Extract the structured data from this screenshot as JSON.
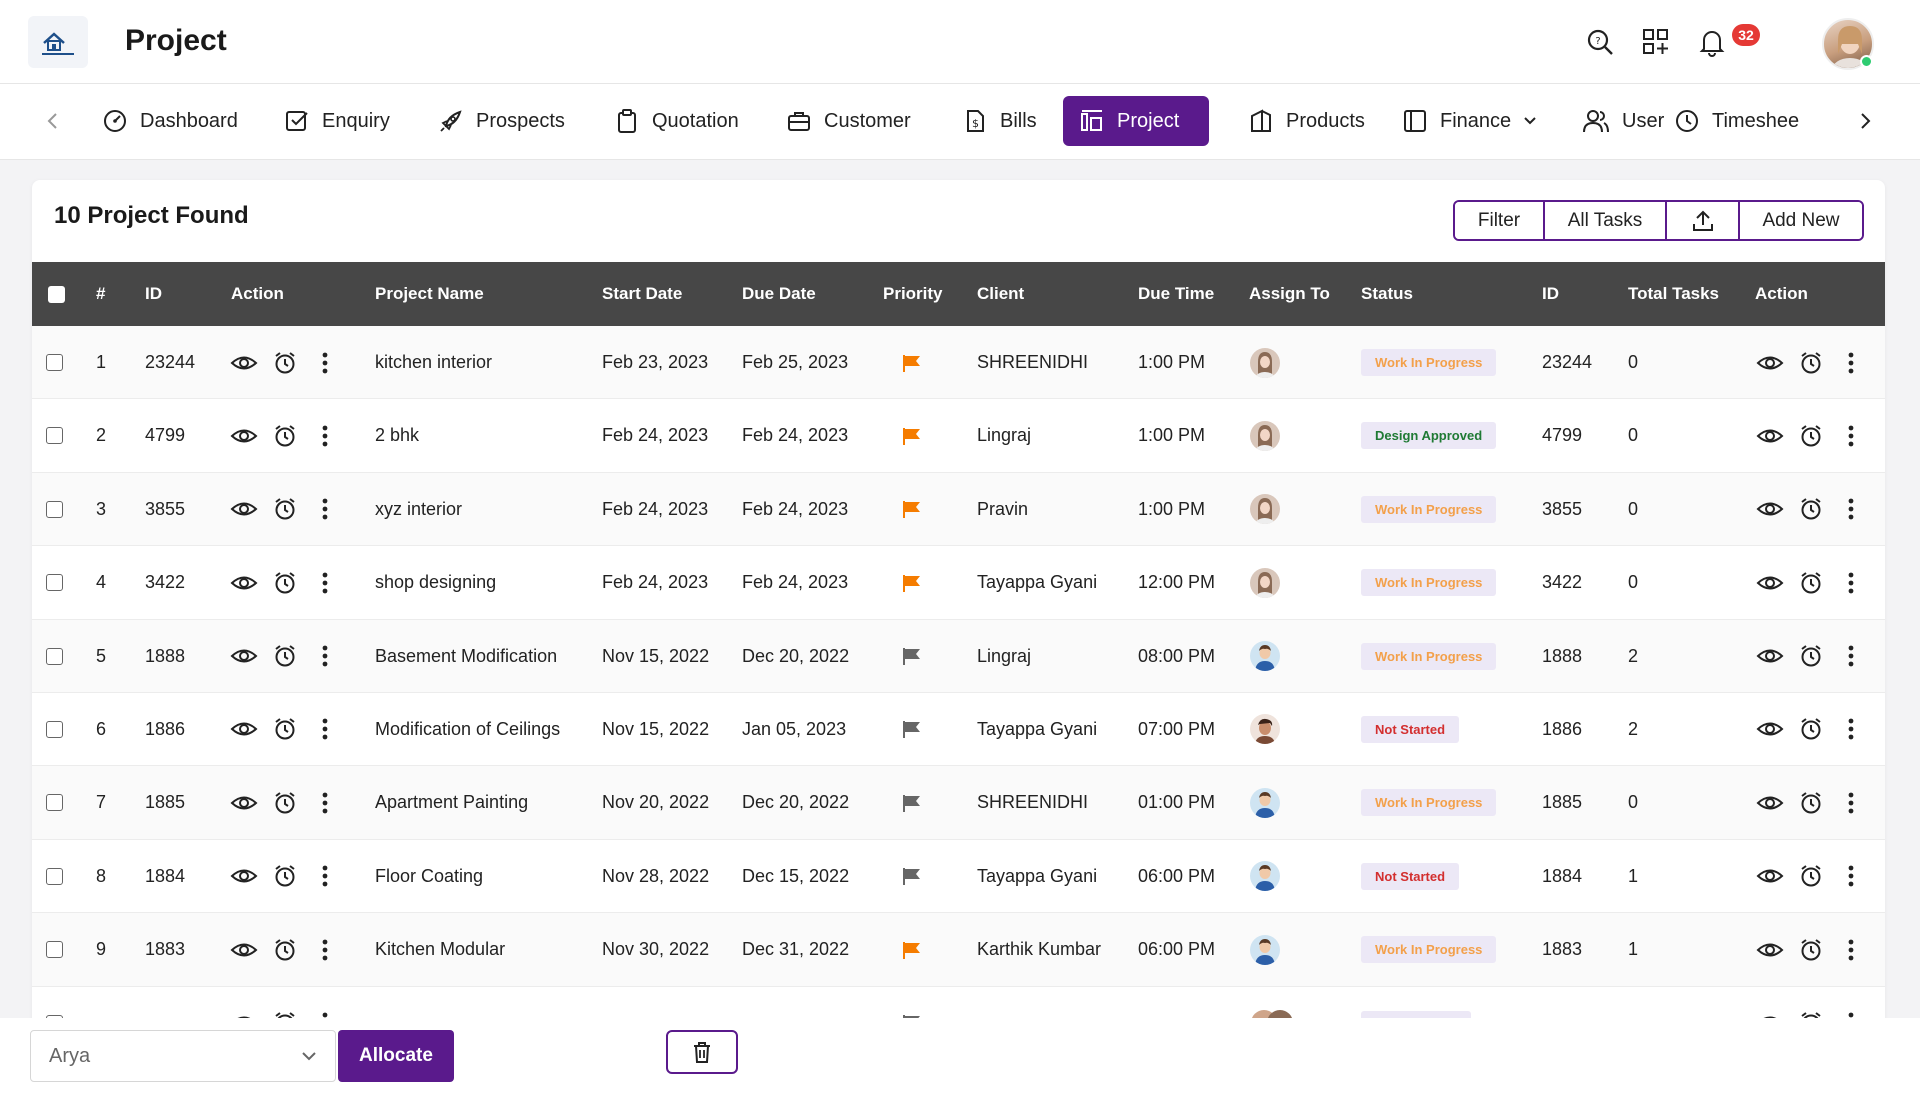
{
  "header": {
    "title": "Project",
    "notification_count": "32",
    "icons": [
      "search-icon",
      "apps-icon",
      "bell-icon"
    ]
  },
  "nav": {
    "items": [
      {
        "label": "Dashboard",
        "icon": "dashboard-icon"
      },
      {
        "label": "Enquiry",
        "icon": "checkbox-icon"
      },
      {
        "label": "Prospects",
        "icon": "rocket-icon"
      },
      {
        "label": "Quotation",
        "icon": "clipboard-icon"
      },
      {
        "label": "Customer",
        "icon": "briefcase-icon"
      },
      {
        "label": "Bills",
        "icon": "bill-icon"
      },
      {
        "label": "Project",
        "icon": "project-icon",
        "active": true
      },
      {
        "label": "Products",
        "icon": "products-icon"
      },
      {
        "label": "Finance",
        "icon": "finance-icon"
      },
      {
        "label": "User",
        "icon": "users-icon"
      },
      {
        "label": "Timeshee",
        "icon": "clock-icon"
      }
    ]
  },
  "main": {
    "found_text": "10 Project Found",
    "buttons": {
      "filter": "Filter",
      "all_tasks": "All Tasks",
      "add_new": "Add New"
    },
    "columns": [
      "#",
      "ID",
      "Action",
      "Project Name",
      "Start Date",
      "Due Date",
      "Priority",
      "Client",
      "Due Time",
      "Assign To",
      "Status",
      "ID",
      "Total Tasks",
      "Action"
    ],
    "rows": [
      {
        "num": "1",
        "id": "23244",
        "name": "kitchen interior",
        "start": "Feb 23, 2023",
        "due": "Feb 25, 2023",
        "priority": "high",
        "client": "SHREENIDHI",
        "time": "1:00 PM",
        "avatar": "female",
        "status": "Work In Progress",
        "status_type": "wip",
        "id2": "23244",
        "tasks": "0"
      },
      {
        "num": "2",
        "id": "4799",
        "name": "2 bhk",
        "start": "Feb 24, 2023",
        "due": "Feb 24, 2023",
        "priority": "high",
        "client": "Lingraj",
        "time": "1:00 PM",
        "avatar": "female",
        "status": "Design Approved",
        "status_type": "approved",
        "id2": "4799",
        "tasks": "0"
      },
      {
        "num": "3",
        "id": "3855",
        "name": "xyz interior",
        "start": "Feb 24, 2023",
        "due": "Feb 24, 2023",
        "priority": "high",
        "client": "Pravin",
        "time": "1:00 PM",
        "avatar": "female",
        "status": "Work In Progress",
        "status_type": "wip",
        "id2": "3855",
        "tasks": "0"
      },
      {
        "num": "4",
        "id": "3422",
        "name": "shop designing",
        "start": "Feb 24, 2023",
        "due": "Feb 24, 2023",
        "priority": "high",
        "client": "Tayappa Gyani",
        "time": "12:00 PM",
        "avatar": "female",
        "status": "Work In Progress",
        "status_type": "wip",
        "id2": "3422",
        "tasks": "0"
      },
      {
        "num": "5",
        "id": "1888",
        "name": "Basement Modification",
        "start": "Nov 15, 2022",
        "due": "Dec 20, 2022",
        "priority": "normal",
        "client": "Lingraj",
        "time": "08:00 PM",
        "avatar": "male",
        "status": "Work In Progress",
        "status_type": "wip",
        "id2": "1888",
        "tasks": "2"
      },
      {
        "num": "6",
        "id": "1886",
        "name": "Modification of Ceilings",
        "start": "Nov 15, 2022",
        "due": "Jan 05, 2023",
        "priority": "normal",
        "client": "Tayappa Gyani",
        "time": "07:00 PM",
        "avatar": "male2",
        "status": "Not Started",
        "status_type": "notstarted",
        "id2": "1886",
        "tasks": "2"
      },
      {
        "num": "7",
        "id": "1885",
        "name": "Apartment Painting",
        "start": "Nov 20, 2022",
        "due": "Dec 20, 2022",
        "priority": "normal",
        "client": "SHREENIDHI",
        "time": "01:00 PM",
        "avatar": "male",
        "status": "Work In Progress",
        "status_type": "wip",
        "id2": "1885",
        "tasks": "0"
      },
      {
        "num": "8",
        "id": "1884",
        "name": "Floor Coating",
        "start": "Nov 28, 2022",
        "due": "Dec 15, 2022",
        "priority": "normal",
        "client": "Tayappa Gyani",
        "time": "06:00 PM",
        "avatar": "male",
        "status": "Not Started",
        "status_type": "notstarted",
        "id2": "1884",
        "tasks": "1"
      },
      {
        "num": "9",
        "id": "1883",
        "name": "Kitchen Modular",
        "start": "Nov 30, 2022",
        "due": "Dec 31, 2022",
        "priority": "high",
        "client": "Karthik Kumbar",
        "time": "06:00 PM",
        "avatar": "male",
        "status": "Work In Progress",
        "status_type": "wip",
        "id2": "1883",
        "tasks": "1"
      },
      {
        "num": "",
        "id": "",
        "name": "",
        "start": "",
        "due": "",
        "priority": "normal",
        "client": "",
        "time": "",
        "avatar": "group",
        "status": "",
        "status_type": "wip",
        "id2": "",
        "tasks": ""
      }
    ]
  },
  "bottom": {
    "select_value": "Arya",
    "allocate_label": "Allocate"
  },
  "colors": {
    "accent": "#5a1a8c",
    "header_bg": "#474747",
    "flag_high": "#f57c00",
    "flag_normal": "#666666",
    "status_wip": "#f3a04a",
    "status_approved": "#1f7a34",
    "status_not_started": "#d32f2f"
  }
}
